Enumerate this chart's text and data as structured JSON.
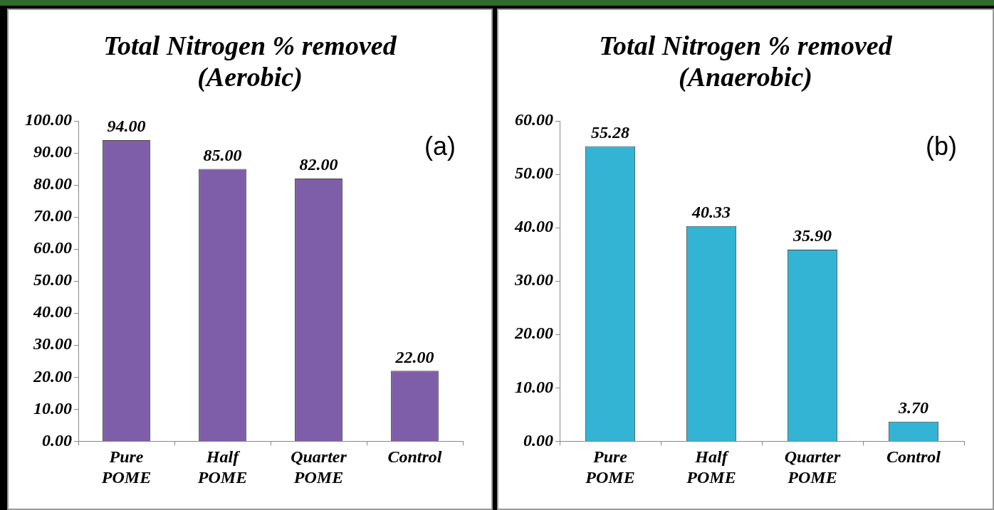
{
  "chart_data": [
    {
      "type": "bar",
      "title": "Total Nitrogen % removed (Aerobic)",
      "categories": [
        "Pure POME",
        "Half POME",
        "Quarter POME",
        "Control"
      ],
      "values": [
        94,
        85,
        82,
        22
      ],
      "color": "#7e5ea8",
      "value_labels": [
        "94.00",
        "85.00",
        "82.00",
        "22.00"
      ],
      "ylim": [
        0,
        100
      ],
      "yticks": [
        {
          "value": 0,
          "label": "0.00"
        },
        {
          "value": 10,
          "label": "10.00"
        },
        {
          "value": 20,
          "label": "20.00"
        },
        {
          "value": 30,
          "label": "30.00"
        },
        {
          "value": 40,
          "label": "40.00"
        },
        {
          "value": 50,
          "label": "50.00"
        },
        {
          "value": 60,
          "label": "60.00"
        },
        {
          "value": 70,
          "label": "70.00"
        },
        {
          "value": 80,
          "label": "80.00"
        },
        {
          "value": 90,
          "label": "90.00"
        },
        {
          "value": 100,
          "label": "100.00"
        }
      ],
      "annotations": [
        "(a)"
      ],
      "grid": false,
      "legend": false
    },
    {
      "type": "bar",
      "title": "Total Nitrogen % removed (Anaerobic)",
      "categories": [
        "Pure POME",
        "Half POME",
        "Quarter POME",
        "Control"
      ],
      "values": [
        55.28,
        40.33,
        35.9,
        3.7
      ],
      "color": "#34b4d4",
      "value_labels": [
        "55.28",
        "40.33",
        "35.90",
        "3.70"
      ],
      "ylim": [
        0,
        60
      ],
      "yticks": [
        {
          "value": 0,
          "label": "0.00"
        },
        {
          "value": 10,
          "label": "10.00"
        },
        {
          "value": 20,
          "label": "20.00"
        },
        {
          "value": 30,
          "label": "30.00"
        },
        {
          "value": 40,
          "label": "40.00"
        },
        {
          "value": 50,
          "label": "50.00"
        },
        {
          "value": 60,
          "label": "60.00"
        }
      ],
      "annotations": [
        "(b)"
      ],
      "grid": false,
      "legend": false
    }
  ]
}
